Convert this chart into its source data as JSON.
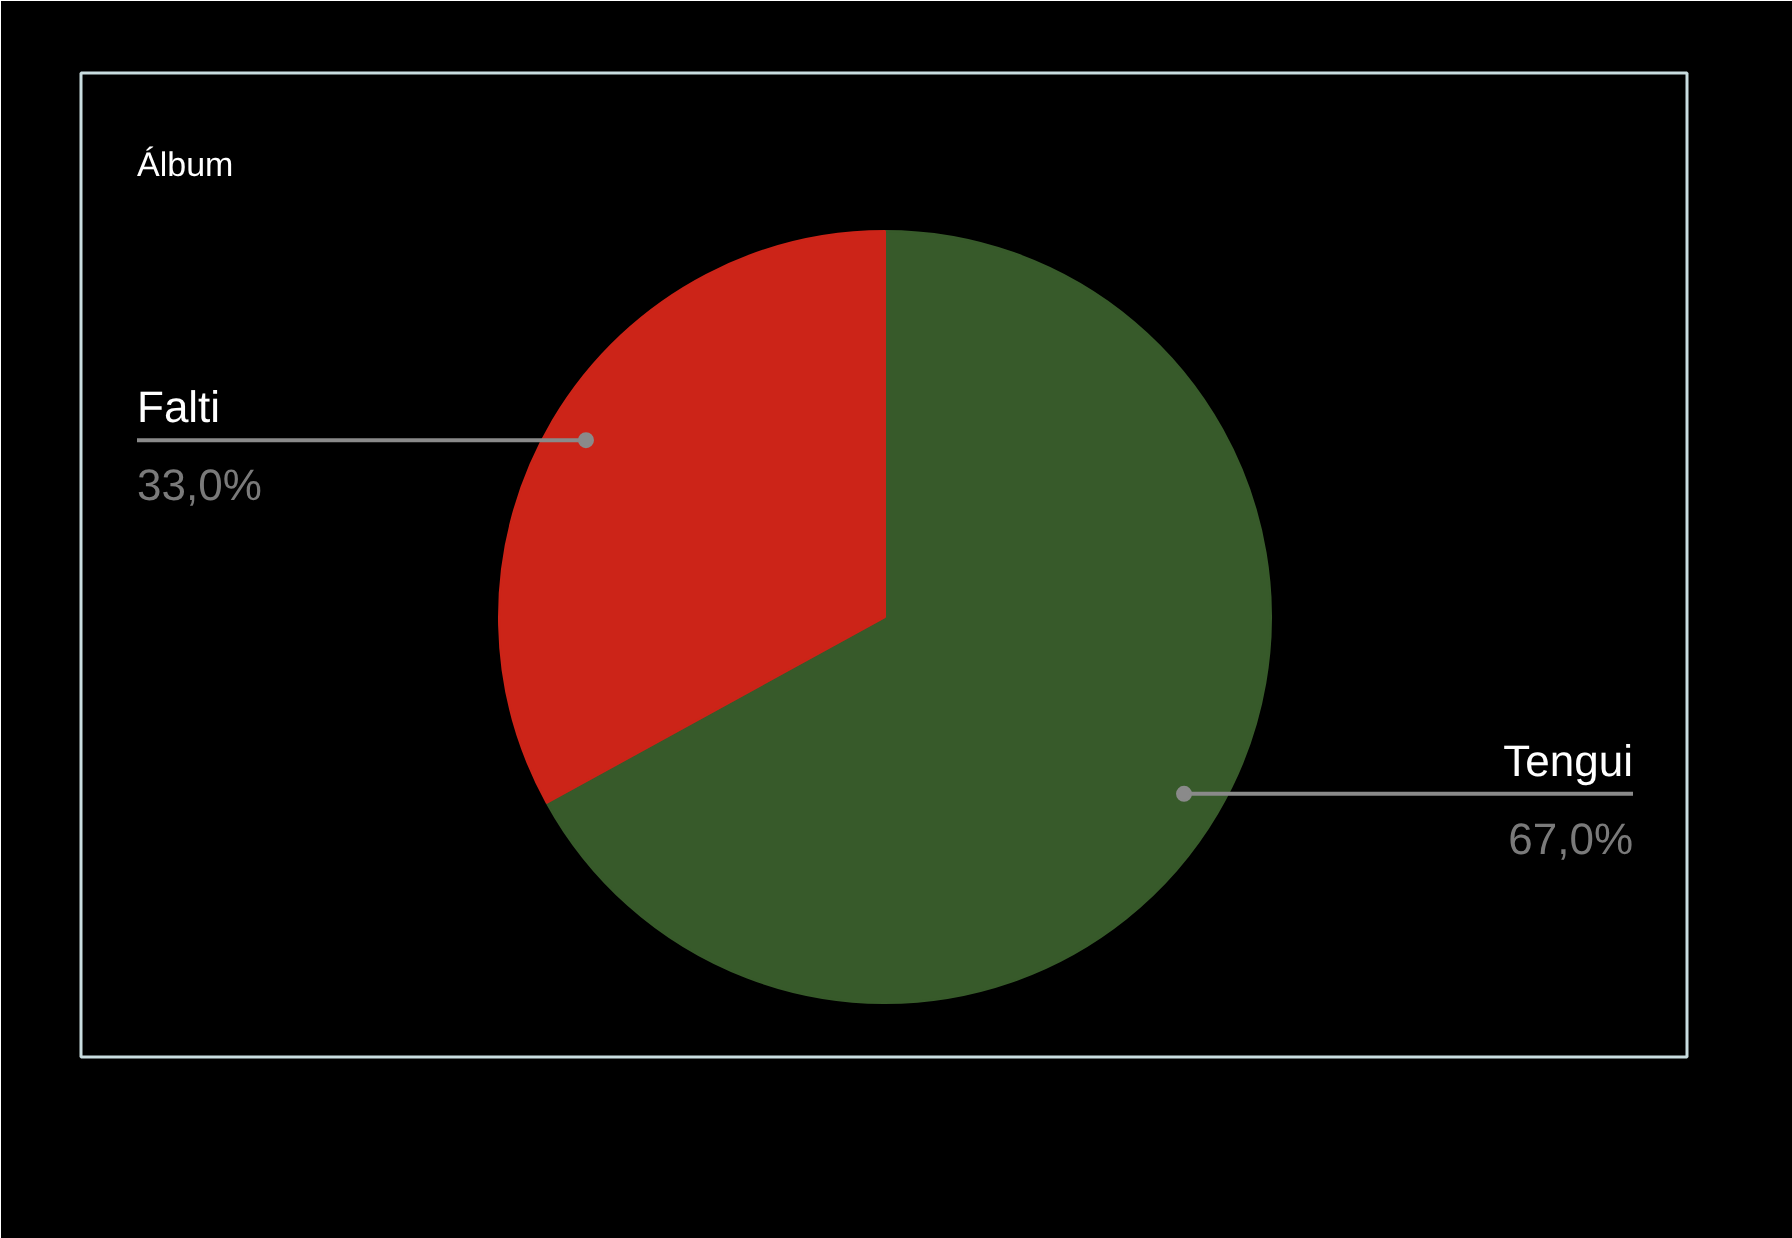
{
  "chart_data": {
    "type": "pie",
    "title": "Álbum",
    "categories": [
      "Tengui",
      "Falti"
    ],
    "values": [
      67.0,
      33.0
    ],
    "colors": [
      "#375a2a",
      "#cc2418"
    ],
    "value_labels": [
      "67,0%",
      "33,0%"
    ]
  }
}
